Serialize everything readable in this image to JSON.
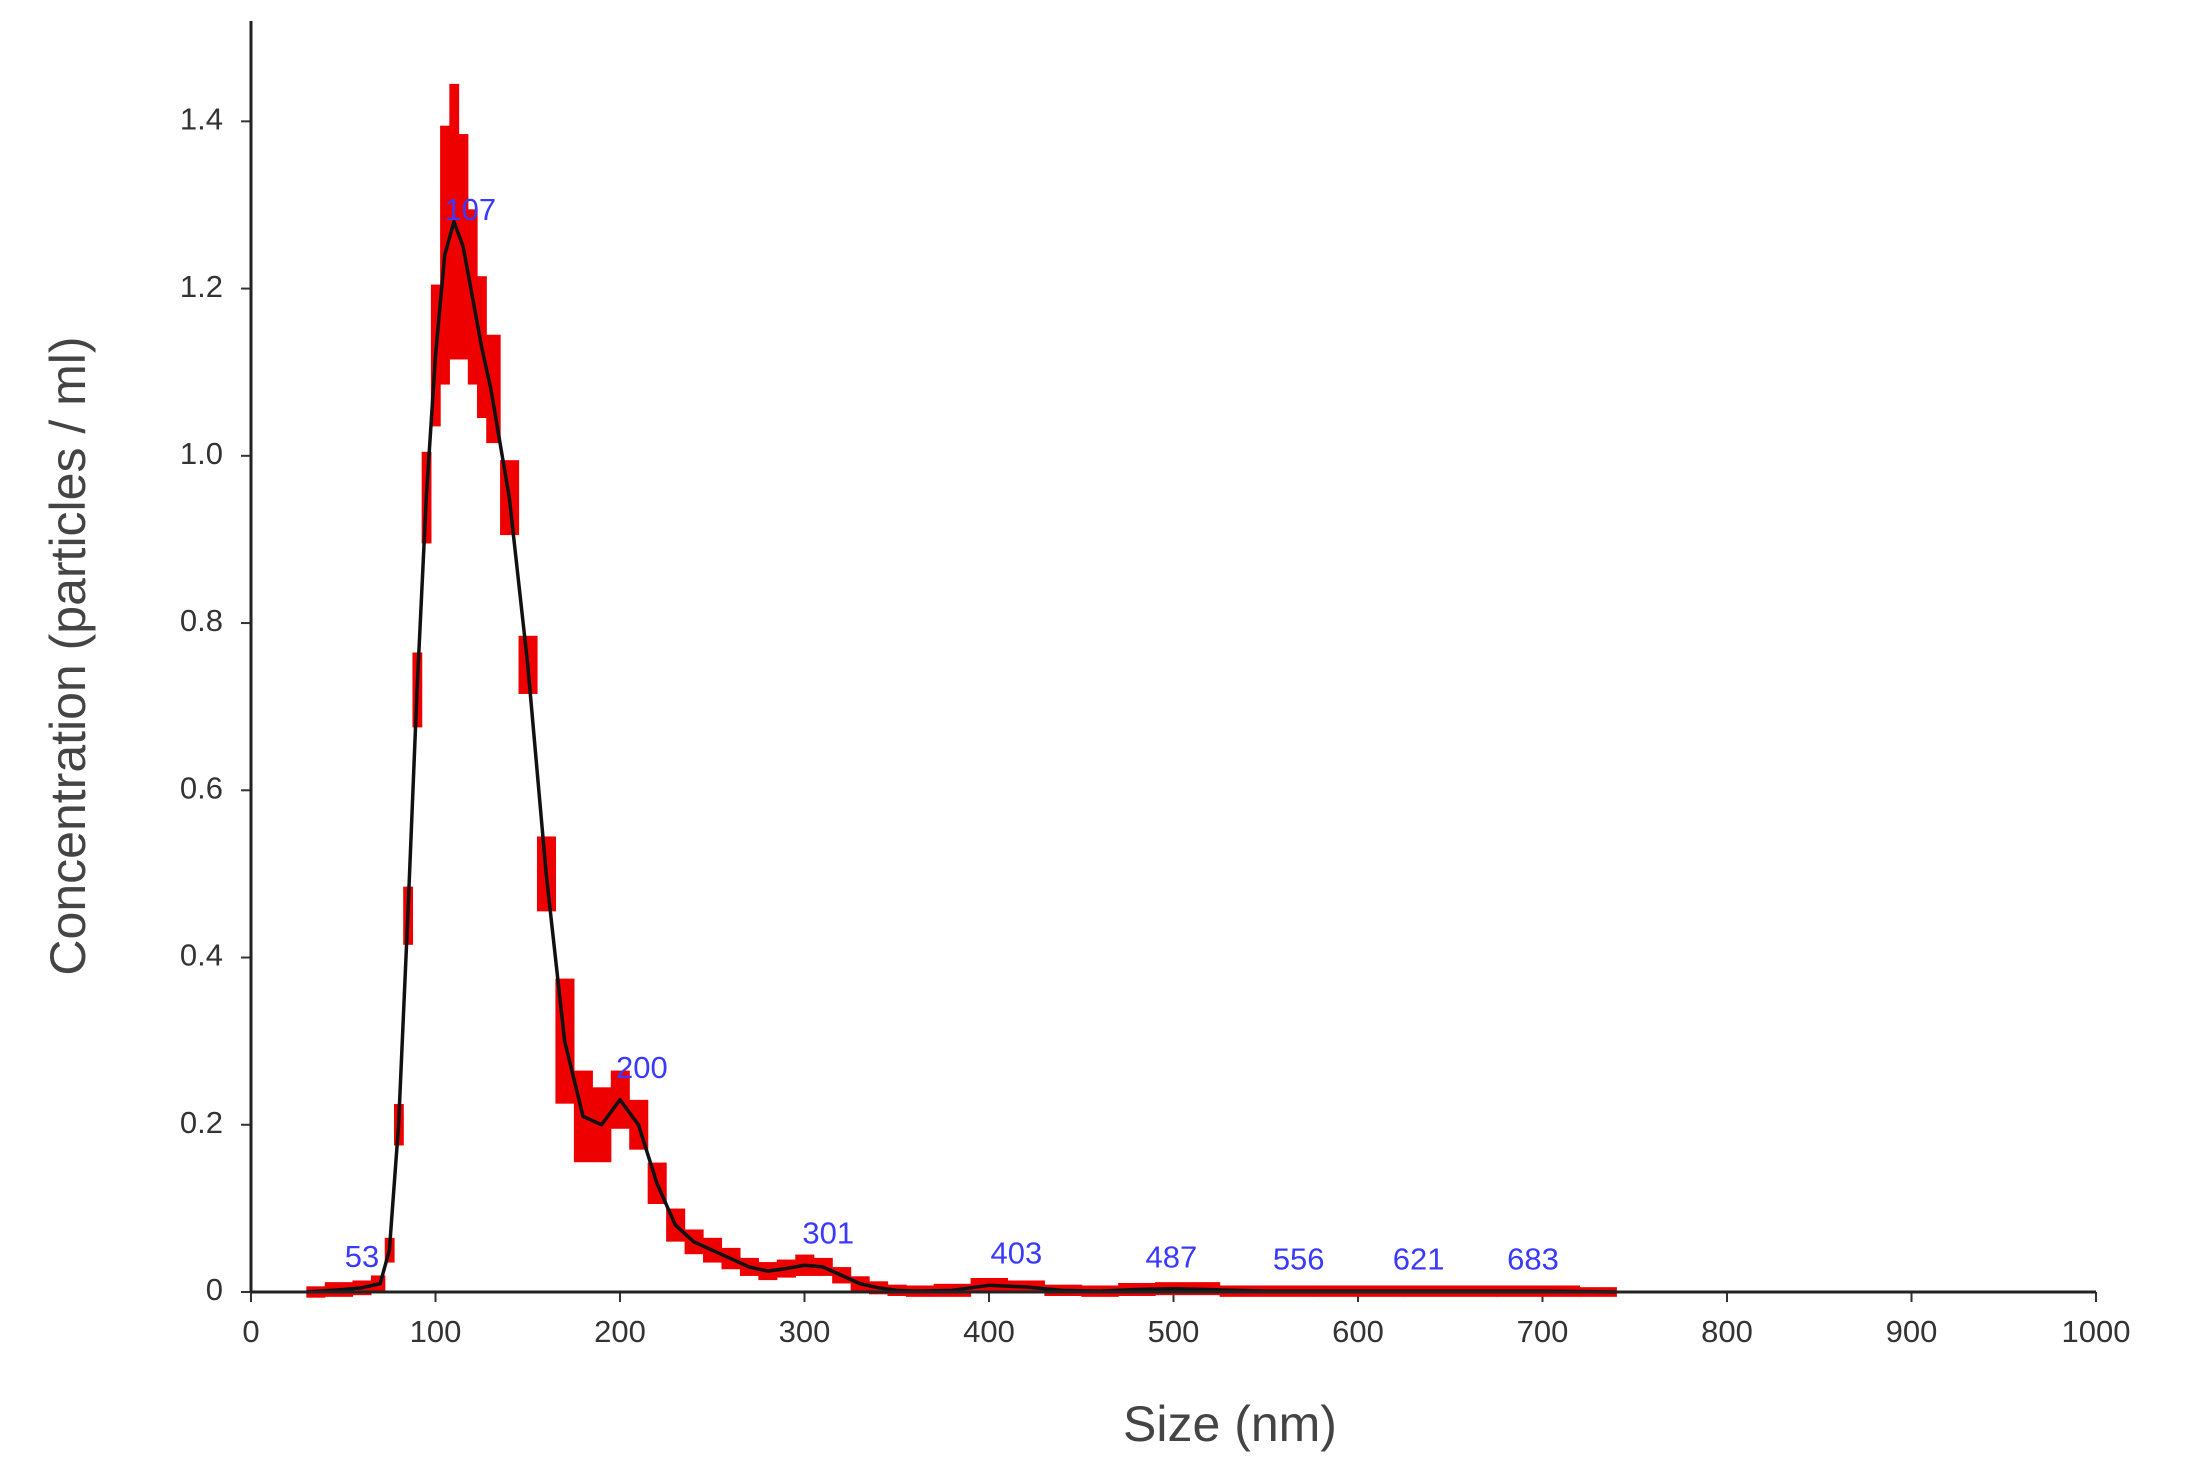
{
  "chart_data": {
    "type": "line",
    "x_label": "Size (nm)",
    "y_label": "Concentration (particles / ml)",
    "x": [
      30,
      50,
      60,
      70,
      75,
      80,
      85,
      90,
      95,
      100,
      105,
      110,
      115,
      120,
      125,
      130,
      140,
      150,
      160,
      170,
      180,
      190,
      200,
      210,
      220,
      230,
      240,
      250,
      260,
      270,
      280,
      290,
      300,
      310,
      320,
      330,
      340,
      350,
      360,
      380,
      400,
      420,
      440,
      460,
      480,
      500,
      550,
      600,
      650,
      700,
      740
    ],
    "series": [
      {
        "color": "#111111",
        "error_color": "#ee0000",
        "values": [
          0,
          0.003,
          0.005,
          0.01,
          0.05,
          0.2,
          0.45,
          0.72,
          0.95,
          1.12,
          1.24,
          1.28,
          1.25,
          1.19,
          1.13,
          1.08,
          0.95,
          0.75,
          0.5,
          0.3,
          0.21,
          0.2,
          0.23,
          0.2,
          0.13,
          0.08,
          0.06,
          0.05,
          0.04,
          0.03,
          0.025,
          0.028,
          0.032,
          0.03,
          0.02,
          0.01,
          0.005,
          0.002,
          0.001,
          0.002,
          0.008,
          0.006,
          0.002,
          0.001,
          0.003,
          0.004,
          0.001,
          0.001,
          0.001,
          0.001,
          0
        ],
        "error": [
          0.002,
          0.004,
          0.004,
          0.005,
          0.01,
          0.02,
          0.03,
          0.04,
          0.05,
          0.08,
          0.15,
          0.16,
          0.13,
          0.1,
          0.08,
          0.06,
          0.04,
          0.03,
          0.04,
          0.07,
          0.05,
          0.04,
          0.03,
          0.025,
          0.02,
          0.015,
          0.01,
          0.01,
          0.008,
          0.006,
          0.006,
          0.006,
          0.008,
          0.006,
          0.005,
          0.004,
          0.003,
          0.002,
          0.002,
          0.003,
          0.004,
          0.003,
          0.002,
          0.002,
          0.003,
          0.003,
          0.002,
          0.002,
          0.002,
          0.002,
          0.001
        ]
      }
    ],
    "peak_labels": [
      53,
      107,
      200,
      301,
      403,
      487,
      556,
      621,
      683
    ],
    "xlim": [
      0,
      1000
    ],
    "xticks": [
      0,
      100,
      200,
      300,
      400,
      500,
      600,
      700,
      800,
      900,
      1000
    ],
    "ylim": [
      0,
      1.52
    ],
    "yticks": [
      0,
      0.2,
      0.4,
      0.6,
      0.8,
      {
        "value": 1,
        "label": "1.0"
      },
      1.2,
      1.4
    ]
  }
}
